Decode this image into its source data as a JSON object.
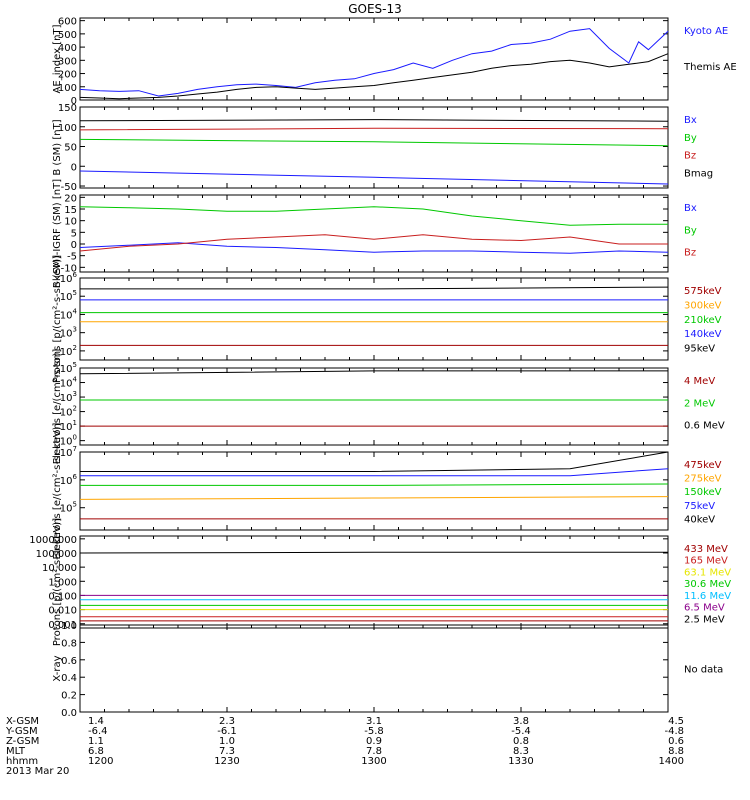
{
  "title": "GOES-13",
  "colors": {
    "black": "#000000",
    "blue": "#1a1aff",
    "green": "#00c800",
    "red": "#c81e1e",
    "orange": "#ffa500",
    "cyan": "#00bfff",
    "yellow": "#e6e600",
    "purple": "#8b008b",
    "darkred": "#a00000",
    "lightgreen": "#5fd35f"
  },
  "chart_data": [
    {
      "type": "line",
      "ylabel": "AE_index [nT]",
      "yticks": [
        "600",
        "500",
        "400",
        "300",
        "200",
        "100",
        "0"
      ],
      "ylim": [
        0,
        620
      ],
      "scale": "linear",
      "series": [
        {
          "name": "Kyoto AE",
          "color": "#1a1aff",
          "x": [
            1200,
            1204,
            1208,
            1212,
            1216,
            1220,
            1224,
            1228,
            1232,
            1236,
            1240,
            1244,
            1248,
            1252,
            1256,
            1300,
            1304,
            1308,
            1312,
            1316,
            1320,
            1324,
            1328,
            1332,
            1336,
            1340,
            1344,
            1348,
            1352,
            1354,
            1356,
            1400
          ],
          "y": [
            80,
            70,
            65,
            70,
            30,
            50,
            80,
            100,
            115,
            120,
            110,
            95,
            130,
            150,
            160,
            200,
            230,
            280,
            240,
            300,
            350,
            370,
            420,
            430,
            460,
            520,
            540,
            390,
            280,
            440,
            380,
            520
          ]
        },
        {
          "name": "Themis AE",
          "color": "#000000",
          "x": [
            1200,
            1204,
            1208,
            1212,
            1216,
            1220,
            1224,
            1228,
            1232,
            1236,
            1240,
            1244,
            1248,
            1252,
            1256,
            1300,
            1304,
            1308,
            1312,
            1316,
            1320,
            1324,
            1328,
            1332,
            1336,
            1340,
            1344,
            1348,
            1352,
            1356,
            1400
          ],
          "y": [
            20,
            15,
            10,
            15,
            20,
            30,
            45,
            60,
            80,
            95,
            100,
            90,
            80,
            90,
            100,
            110,
            130,
            150,
            170,
            190,
            210,
            240,
            260,
            270,
            290,
            300,
            280,
            250,
            270,
            290,
            350
          ]
        }
      ]
    },
    {
      "type": "line",
      "ylabel": "B (SM) [nT]",
      "yticks": [
        "150",
        "100",
        "50",
        "0",
        "-50"
      ],
      "ylim": [
        -55,
        150
      ],
      "scale": "linear",
      "series": [
        {
          "name": "Bx",
          "color": "#1a1aff",
          "x": [
            1200,
            1300,
            1400
          ],
          "y": [
            -12,
            -28,
            -45
          ]
        },
        {
          "name": "By",
          "color": "#00c800",
          "x": [
            1200,
            1300,
            1400
          ],
          "y": [
            68,
            62,
            52
          ]
        },
        {
          "name": "Bz",
          "color": "#c81e1e",
          "x": [
            1200,
            1300,
            1400
          ],
          "y": [
            92,
            96,
            95
          ]
        },
        {
          "name": "Bmag",
          "color": "#000000",
          "x": [
            1200,
            1300,
            1400
          ],
          "y": [
            115,
            118,
            114
          ]
        }
      ]
    },
    {
      "type": "line",
      "ylabel": "B (SM)-IGRF (SM) [nT]",
      "yticks": [
        "20",
        "15",
        "10",
        "5",
        "0",
        "-5",
        "-10"
      ],
      "ylim": [
        -12,
        21
      ],
      "scale": "linear",
      "series": [
        {
          "name": "Bx",
          "color": "#1a1aff",
          "x": [
            1200,
            1210,
            1220,
            1230,
            1240,
            1250,
            1300,
            1310,
            1320,
            1330,
            1340,
            1350,
            1400
          ],
          "y": [
            -1.5,
            -0.5,
            0.5,
            -1,
            -1.5,
            -2.5,
            -3.5,
            -3,
            -3,
            -3.5,
            -4,
            -3,
            -3.5
          ]
        },
        {
          "name": "By",
          "color": "#00c800",
          "x": [
            1200,
            1210,
            1220,
            1230,
            1240,
            1250,
            1300,
            1310,
            1320,
            1330,
            1340,
            1350,
            1400
          ],
          "y": [
            16,
            15.5,
            15,
            14,
            14,
            15,
            16,
            15,
            12,
            10,
            8,
            8.5,
            8.5
          ]
        },
        {
          "name": "Bz",
          "color": "#c81e1e",
          "x": [
            1200,
            1210,
            1220,
            1230,
            1240,
            1250,
            1300,
            1310,
            1320,
            1330,
            1340,
            1350,
            1400
          ],
          "y": [
            -3,
            -1,
            0,
            2,
            3,
            4,
            2,
            4,
            2,
            1.5,
            3,
            0,
            0
          ]
        }
      ]
    },
    {
      "type": "line",
      "ylabel": "Protons [p/(cm²-s-sr-keV)]",
      "yticks": [
        "10^6",
        "10^5",
        "10^4",
        "10^3",
        "10^2"
      ],
      "ylim": [
        1.5,
        6
      ],
      "scale": "log",
      "series": [
        {
          "name": "575keV",
          "color": "#a00000",
          "x": [
            1200,
            1300,
            1400
          ],
          "y": [
            2.3,
            2.3,
            2.3
          ]
        },
        {
          "name": "300keV",
          "color": "#ffa500",
          "x": [
            1200,
            1300,
            1400
          ],
          "y": [
            3.6,
            3.6,
            3.6
          ]
        },
        {
          "name": "210keV",
          "color": "#00c800",
          "x": [
            1200,
            1300,
            1400
          ],
          "y": [
            4.1,
            4.1,
            4.1
          ]
        },
        {
          "name": "140keV",
          "color": "#1a1aff",
          "x": [
            1200,
            1300,
            1400
          ],
          "y": [
            4.8,
            4.8,
            4.8
          ]
        },
        {
          "name": "95keV",
          "color": "#000000",
          "x": [
            1200,
            1300,
            1400
          ],
          "y": [
            5.4,
            5.4,
            5.5
          ]
        }
      ]
    },
    {
      "type": "line",
      "ylabel": "Electrons [e/(cm²-s-sr)]",
      "yticks": [
        "10^5",
        "10^4",
        "10^3",
        "10^2",
        "10^1",
        "10^0"
      ],
      "ylim": [
        -0.3,
        5
      ],
      "scale": "log",
      "series": [
        {
          "name": "4 MeV",
          "color": "#a00000",
          "x": [
            1200,
            1300,
            1400
          ],
          "y": [
            1,
            1,
            1
          ]
        },
        {
          "name": "2 MeV",
          "color": "#00c800",
          "x": [
            1200,
            1300,
            1400
          ],
          "y": [
            2.8,
            2.8,
            2.8
          ]
        },
        {
          "name": "0.6 MeV",
          "color": "#000000",
          "x": [
            1200,
            1300,
            1400
          ],
          "y": [
            4.6,
            4.8,
            4.8
          ]
        }
      ]
    },
    {
      "type": "line",
      "ylabel": "Electrons [e/(cm²-s-sr-keV)]",
      "yticks": [
        "10^7",
        "10^6",
        "10^5"
      ],
      "ylim": [
        4.2,
        7
      ],
      "scale": "log",
      "series": [
        {
          "name": "475keV",
          "color": "#a00000",
          "x": [
            1200,
            1300,
            1400
          ],
          "y": [
            4.6,
            4.6,
            4.6
          ]
        },
        {
          "name": "275keV",
          "color": "#ffa500",
          "x": [
            1200,
            1300,
            1400
          ],
          "y": [
            5.3,
            5.35,
            5.4
          ]
        },
        {
          "name": "150keV",
          "color": "#00c800",
          "x": [
            1200,
            1300,
            1400
          ],
          "y": [
            5.8,
            5.8,
            5.85
          ]
        },
        {
          "name": "75keV",
          "color": "#1a1aff",
          "x": [
            1200,
            1300,
            1340,
            1400
          ],
          "y": [
            6.15,
            6.15,
            6.15,
            6.4
          ]
        },
        {
          "name": "40keV",
          "color": "#000000",
          "x": [
            1200,
            1300,
            1340,
            1400
          ],
          "y": [
            6.3,
            6.3,
            6.4,
            7
          ]
        }
      ]
    },
    {
      "type": "line",
      "ylabel": "Protons [p/(cm²-s-sr-keV)]",
      "yticks": [
        "1000.000",
        "100.000",
        "10.000",
        "1.000",
        "0.100",
        "0.010",
        "0.001"
      ],
      "ylim": [
        -3.3,
        3.2
      ],
      "scale": "log",
      "series": [
        {
          "name": "433 MeV",
          "color": "#a00000",
          "x": [
            1200,
            1300,
            1400
          ],
          "y": [
            -2.8,
            -2.8,
            -2.8
          ]
        },
        {
          "name": "165 MeV",
          "color": "#c81e1e",
          "x": [
            1200,
            1300,
            1400
          ],
          "y": [
            -2.5,
            -2.5,
            -2.5
          ]
        },
        {
          "name": "63.1 MeV",
          "color": "#e6e600",
          "x": [
            1200,
            1300,
            1400
          ],
          "y": [
            -2.0,
            -2.0,
            -2.0
          ]
        },
        {
          "name": "30.6 MeV",
          "color": "#00c800",
          "x": [
            1200,
            1300,
            1400
          ],
          "y": [
            -1.7,
            -1.7,
            -1.7
          ]
        },
        {
          "name": "11.6 MeV",
          "color": "#00bfff",
          "x": [
            1200,
            1300,
            1400
          ],
          "y": [
            -1.3,
            -1.3,
            -1.3
          ]
        },
        {
          "name": "6.5 MeV",
          "color": "#8b008b",
          "x": [
            1200,
            1300,
            1400
          ],
          "y": [
            -1.0,
            -1.0,
            -1.0
          ]
        },
        {
          "name": "2.5 MeV",
          "color": "#000000",
          "x": [
            1200,
            1300,
            1400
          ],
          "y": [
            2.0,
            2.05,
            2.05
          ]
        }
      ]
    },
    {
      "type": "line",
      "ylabel": "X-ray",
      "yticks": [
        "1.0",
        "0.8",
        "0.6",
        "0.4",
        "0.2",
        "0.0"
      ],
      "ylim": [
        0,
        1
      ],
      "scale": "linear",
      "note": "No data",
      "series": []
    }
  ],
  "xaxis": {
    "rows": [
      {
        "label": "X-GSM",
        "values": [
          "1.4",
          "2.3",
          "3.1",
          "3.8",
          "4.5"
        ]
      },
      {
        "label": "Y-GSM",
        "values": [
          "-6.4",
          "-6.1",
          "-5.8",
          "-5.4",
          "-4.8"
        ]
      },
      {
        "label": "Z-GSM",
        "values": [
          "1.1",
          "1.0",
          "0.9",
          "0.8",
          "0.6"
        ]
      },
      {
        "label": "MLT",
        "values": [
          "6.8",
          "7.3",
          "7.8",
          "8.3",
          "8.8"
        ]
      },
      {
        "label": "hhmm",
        "values": [
          "1200",
          "1230",
          "1300",
          "1330",
          "1400"
        ]
      }
    ],
    "date": "2013 Mar 20"
  }
}
